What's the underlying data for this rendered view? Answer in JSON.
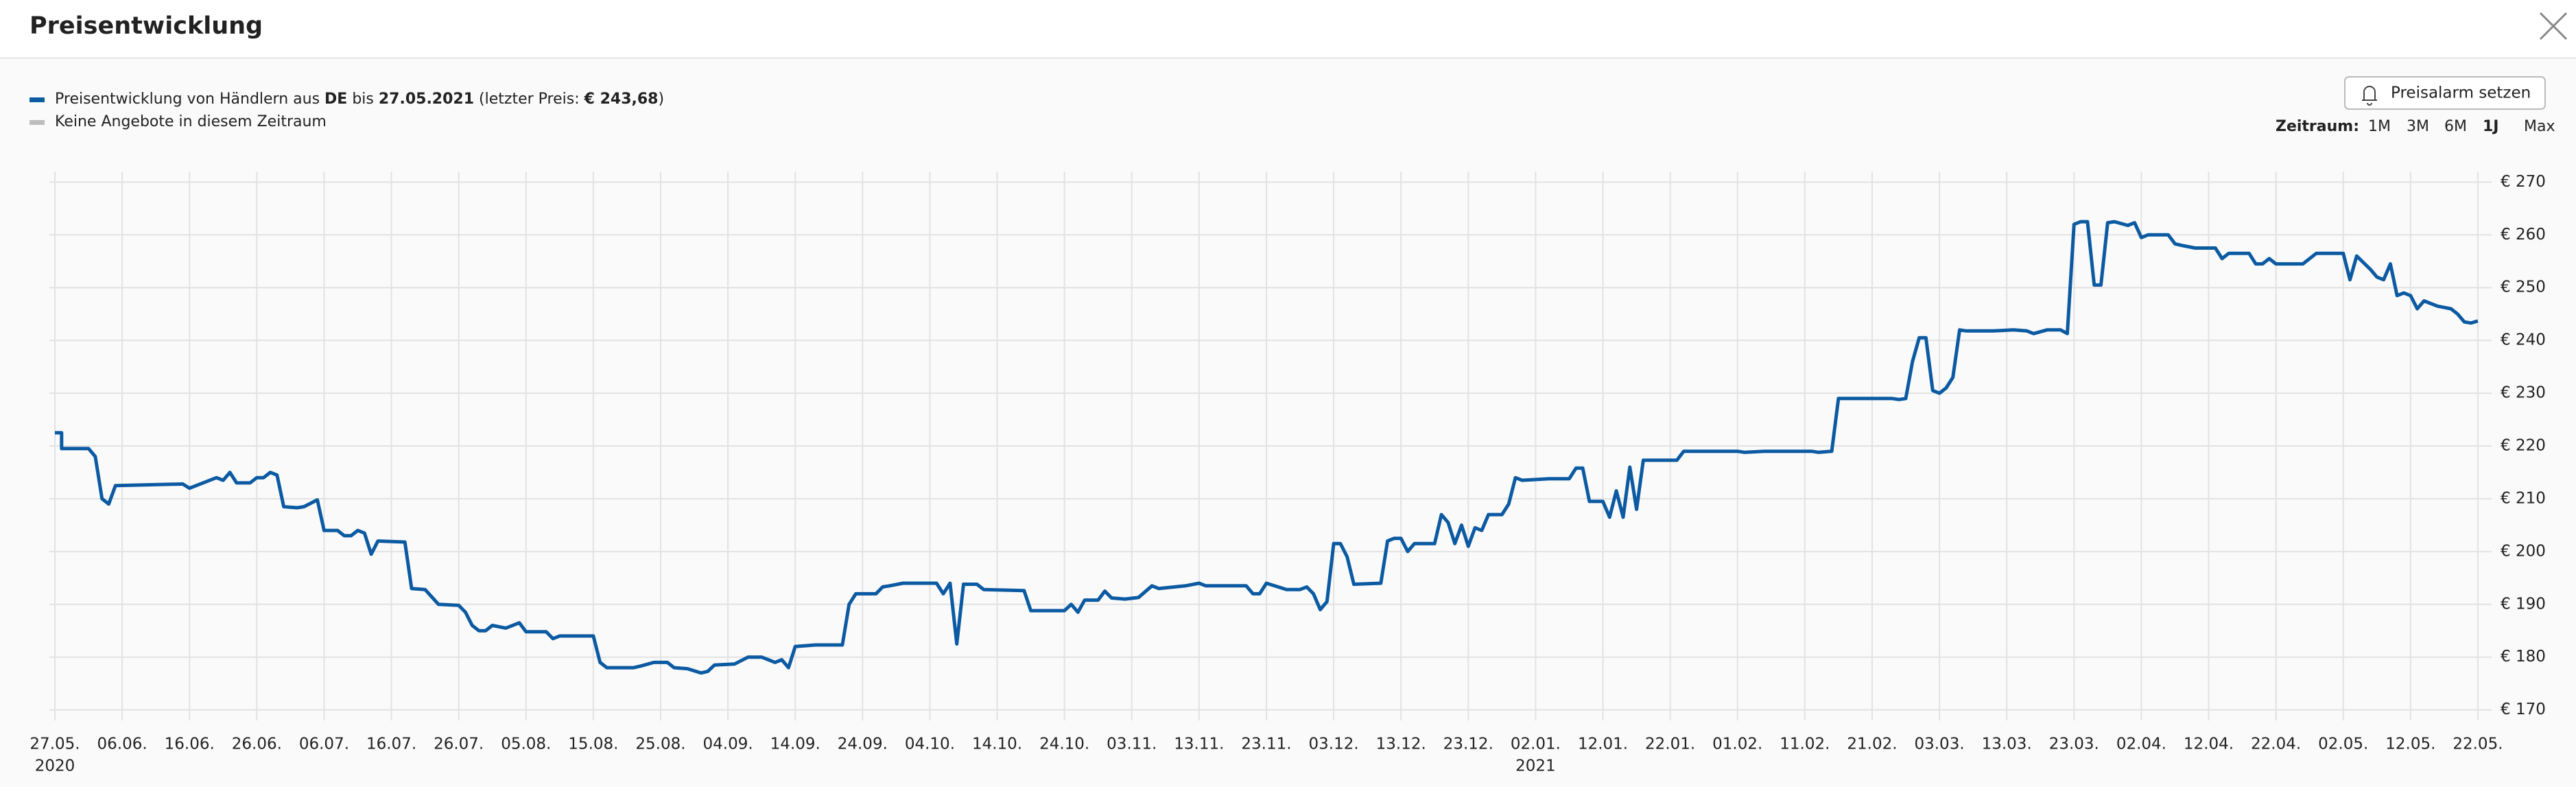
{
  "header": {
    "title": "Preisentwicklung"
  },
  "controls": {
    "alarm_button": "Preisalarm setzen",
    "range_label": "Zeitraum:",
    "range_options": [
      "1M",
      "3M",
      "6M",
      "1J",
      "Max"
    ],
    "active_range": "1J"
  },
  "chart_data": {
    "type": "line",
    "series": [
      {
        "name_parts": [
          "Preisentwicklung von Händlern aus ",
          "DE",
          " bis ",
          "27.05.2021",
          " (letzter Preis: ",
          "€ 243,68",
          ")"
        ],
        "color": "#0b5aa2",
        "x": [
          "2020-05-27",
          "2020-05-28",
          "2020-05-28",
          "2020-06-01",
          "2020-06-02",
          "2020-06-03",
          "2020-06-04",
          "2020-06-05",
          "2020-06-15",
          "2020-06-16",
          "2020-06-17",
          "2020-06-20",
          "2020-06-21",
          "2020-06-22",
          "2020-06-23",
          "2020-06-25",
          "2020-06-26",
          "2020-06-27",
          "2020-06-28",
          "2020-06-29",
          "2020-06-30",
          "2020-07-02",
          "2020-07-03",
          "2020-07-05",
          "2020-07-06",
          "2020-07-08",
          "2020-07-09",
          "2020-07-10",
          "2020-07-11",
          "2020-07-12",
          "2020-07-13",
          "2020-07-14",
          "2020-07-18",
          "2020-07-19",
          "2020-07-21",
          "2020-07-23",
          "2020-07-26",
          "2020-07-27",
          "2020-07-28",
          "2020-07-29",
          "2020-07-30",
          "2020-07-31",
          "2020-08-02",
          "2020-08-04",
          "2020-08-05",
          "2020-08-08",
          "2020-08-09",
          "2020-08-10",
          "2020-08-15",
          "2020-08-16",
          "2020-08-17",
          "2020-08-21",
          "2020-08-22",
          "2020-08-24",
          "2020-08-26",
          "2020-08-27",
          "2020-08-29",
          "2020-08-31",
          "2020-09-01",
          "2020-09-02",
          "2020-09-05",
          "2020-09-07",
          "2020-09-09",
          "2020-09-10",
          "2020-09-11",
          "2020-09-12",
          "2020-09-13",
          "2020-09-14",
          "2020-09-17",
          "2020-09-21",
          "2020-09-22",
          "2020-09-23",
          "2020-09-26",
          "2020-09-27",
          "2020-09-28",
          "2020-09-30",
          "2020-10-05",
          "2020-10-06",
          "2020-10-07",
          "2020-10-08",
          "2020-10-09",
          "2020-10-11",
          "2020-10-12",
          "2020-10-18",
          "2020-10-19",
          "2020-10-24",
          "2020-10-25",
          "2020-10-26",
          "2020-10-27",
          "2020-10-29",
          "2020-10-30",
          "2020-10-31",
          "2020-11-02",
          "2020-11-04",
          "2020-11-06",
          "2020-11-07",
          "2020-11-11",
          "2020-11-13",
          "2020-11-14",
          "2020-11-20",
          "2020-11-21",
          "2020-11-22",
          "2020-11-23",
          "2020-11-26",
          "2020-11-28",
          "2020-11-29",
          "2020-11-30",
          "2020-12-01",
          "2020-12-02",
          "2020-12-03",
          "2020-12-04",
          "2020-12-05",
          "2020-12-06",
          "2020-12-10",
          "2020-12-11",
          "2020-12-12",
          "2020-12-13",
          "2020-12-14",
          "2020-12-15",
          "2020-12-18",
          "2020-12-19",
          "2020-12-20",
          "2020-12-21",
          "2020-12-22",
          "2020-12-23",
          "2020-12-24",
          "2020-12-25",
          "2020-12-26",
          "2020-12-28",
          "2020-12-29",
          "2020-12-30",
          "2020-12-31",
          "2021-01-04",
          "2021-01-07",
          "2021-01-08",
          "2021-01-09",
          "2021-01-10",
          "2021-01-12",
          "2021-01-13",
          "2021-01-14",
          "2021-01-15",
          "2021-01-16",
          "2021-01-17",
          "2021-01-18",
          "2021-01-23",
          "2021-01-24",
          "2021-02-01",
          "2021-02-02",
          "2021-02-05",
          "2021-02-12",
          "2021-02-13",
          "2021-02-15",
          "2021-02-16",
          "2021-02-24",
          "2021-02-25",
          "2021-02-26",
          "2021-02-27",
          "2021-02-28",
          "2021-03-01",
          "2021-03-02",
          "2021-03-03",
          "2021-03-04",
          "2021-03-05",
          "2021-03-06",
          "2021-03-07",
          "2021-03-11",
          "2021-03-14",
          "2021-03-16",
          "2021-03-17",
          "2021-03-19",
          "2021-03-21",
          "2021-03-22",
          "2021-03-23",
          "2021-03-24",
          "2021-03-25",
          "2021-03-26",
          "2021-03-27",
          "2021-03-28",
          "2021-03-29",
          "2021-03-31",
          "2021-04-01",
          "2021-04-02",
          "2021-04-03",
          "2021-04-06",
          "2021-04-07",
          "2021-04-08",
          "2021-04-10",
          "2021-04-13",
          "2021-04-14",
          "2021-04-15",
          "2021-04-18",
          "2021-04-19",
          "2021-04-20",
          "2021-04-21",
          "2021-04-22",
          "2021-04-26",
          "2021-04-28",
          "2021-05-02",
          "2021-05-03",
          "2021-05-04",
          "2021-05-06",
          "2021-05-07",
          "2021-05-08",
          "2021-05-09",
          "2021-05-10",
          "2021-05-11",
          "2021-05-12",
          "2021-05-13",
          "2021-05-14",
          "2021-05-16",
          "2021-05-18",
          "2021-05-19",
          "2021-05-20",
          "2021-05-21",
          "2021-05-22"
        ],
        "values": [
          222.5,
          222.5,
          219.5,
          219.5,
          218,
          210,
          209,
          212.5,
          212.8,
          212,
          212.5,
          214,
          213.5,
          215,
          213,
          213,
          214,
          214,
          215,
          214.5,
          208.5,
          208.3,
          208.5,
          209.8,
          204,
          204,
          203,
          203,
          204,
          203.5,
          199.5,
          202,
          201.8,
          193,
          192.8,
          190,
          189.8,
          188.5,
          186,
          185,
          185,
          186,
          185.5,
          186.5,
          184.8,
          184.8,
          183.5,
          184,
          184,
          179,
          178,
          178,
          178.3,
          179,
          179,
          178,
          177.8,
          177,
          177.3,
          178.5,
          178.7,
          180,
          180,
          179.5,
          179,
          179.5,
          178,
          182,
          182.3,
          182.3,
          190,
          192,
          192,
          193.3,
          193.5,
          194,
          194,
          192,
          194,
          182.5,
          193.8,
          193.8,
          192.8,
          192.6,
          188.8,
          188.8,
          190,
          188.5,
          190.8,
          190.8,
          192.5,
          191.2,
          191,
          191.3,
          193.5,
          193,
          193.5,
          194,
          193.5,
          193.5,
          192,
          192,
          194,
          192.8,
          192.8,
          193.3,
          192,
          189,
          190.5,
          201.5,
          201.5,
          199,
          193.8,
          194,
          202,
          202.5,
          202.5,
          200,
          201.5,
          201.5,
          207,
          205.5,
          201.5,
          205,
          201,
          204.5,
          204,
          207,
          207,
          209,
          214,
          213.5,
          213.8,
          213.8,
          215.8,
          215.8,
          209.5,
          209.5,
          206.5,
          211.5,
          206.5,
          216,
          208,
          217.3,
          217.3,
          219,
          219,
          218.8,
          219,
          219,
          218.8,
          219,
          229,
          229,
          228.8,
          229,
          236,
          240.5,
          240.5,
          230.5,
          230,
          231,
          233,
          242,
          241.8,
          241.8,
          242,
          241.8,
          241.3,
          242,
          242,
          241.3,
          262,
          262.5,
          262.5,
          250.5,
          250.5,
          262.3,
          262.5,
          261.8,
          262.3,
          259.5,
          260,
          260,
          258.3,
          258,
          257.5,
          257.5,
          255.5,
          256.5,
          256.5,
          254.5,
          254.5,
          255.5,
          254.5,
          254.5,
          256.5,
          256.5,
          251.5,
          256,
          253.5,
          252,
          251.5,
          254.5,
          248.5,
          249,
          248.5,
          246,
          247.5,
          246.5,
          246,
          245,
          243.5,
          243.3,
          243.7
        ]
      }
    ],
    "legend_extra": {
      "label": "Keine Angebote in diesem Zeitraum",
      "color": "#bdbdbd"
    },
    "xlim": [
      "2020-05-27",
      "2021-05-27"
    ],
    "xticks": [
      {
        "value": "2020-05-27",
        "label": "27.05."
      },
      {
        "value": "2020-06-06",
        "label": "06.06."
      },
      {
        "value": "2020-06-16",
        "label": "16.06."
      },
      {
        "value": "2020-06-26",
        "label": "26.06."
      },
      {
        "value": "2020-07-06",
        "label": "06.07."
      },
      {
        "value": "2020-07-16",
        "label": "16.07."
      },
      {
        "value": "2020-07-26",
        "label": "26.07."
      },
      {
        "value": "2020-08-05",
        "label": "05.08."
      },
      {
        "value": "2020-08-15",
        "label": "15.08."
      },
      {
        "value": "2020-08-25",
        "label": "25.08."
      },
      {
        "value": "2020-09-04",
        "label": "04.09."
      },
      {
        "value": "2020-09-14",
        "label": "14.09."
      },
      {
        "value": "2020-09-24",
        "label": "24.09."
      },
      {
        "value": "2020-10-04",
        "label": "04.10."
      },
      {
        "value": "2020-10-14",
        "label": "14.10."
      },
      {
        "value": "2020-10-24",
        "label": "24.10."
      },
      {
        "value": "2020-11-03",
        "label": "03.11."
      },
      {
        "value": "2020-11-13",
        "label": "13.11."
      },
      {
        "value": "2020-11-23",
        "label": "23.11."
      },
      {
        "value": "2020-12-03",
        "label": "03.12."
      },
      {
        "value": "2020-12-13",
        "label": "13.12."
      },
      {
        "value": "2020-12-23",
        "label": "23.12."
      },
      {
        "value": "2021-01-02",
        "label": "02.01."
      },
      {
        "value": "2021-01-12",
        "label": "12.01."
      },
      {
        "value": "2021-01-22",
        "label": "22.01."
      },
      {
        "value": "2021-02-01",
        "label": "01.02."
      },
      {
        "value": "2021-02-11",
        "label": "11.02."
      },
      {
        "value": "2021-02-21",
        "label": "21.02."
      },
      {
        "value": "2021-03-03",
        "label": "03.03."
      },
      {
        "value": "2021-03-13",
        "label": "13.03."
      },
      {
        "value": "2021-03-23",
        "label": "23.03."
      },
      {
        "value": "2021-04-02",
        "label": "02.04."
      },
      {
        "value": "2021-04-12",
        "label": "12.04."
      },
      {
        "value": "2021-04-22",
        "label": "22.04."
      },
      {
        "value": "2021-05-02",
        "label": "02.05."
      },
      {
        "value": "2021-05-12",
        "label": "12.05."
      },
      {
        "value": "2021-05-22",
        "label": "22.05."
      }
    ],
    "x_year_labels": [
      {
        "value": "2020-05-27",
        "label": "2020"
      },
      {
        "value": "2021-01-02",
        "label": "2021"
      }
    ],
    "ylim": [
      168,
      272
    ],
    "yticks": [
      {
        "value": 170,
        "label": "€ 170"
      },
      {
        "value": 180,
        "label": "€ 180"
      },
      {
        "value": 190,
        "label": "€ 190"
      },
      {
        "value": 200,
        "label": "€ 200"
      },
      {
        "value": 210,
        "label": "€ 210"
      },
      {
        "value": 220,
        "label": "€ 220"
      },
      {
        "value": 230,
        "label": "€ 230"
      },
      {
        "value": 240,
        "label": "€ 240"
      },
      {
        "value": 250,
        "label": "€ 250"
      },
      {
        "value": 260,
        "label": "€ 260"
      },
      {
        "value": 270,
        "label": "€ 270"
      }
    ],
    "grid": true
  }
}
